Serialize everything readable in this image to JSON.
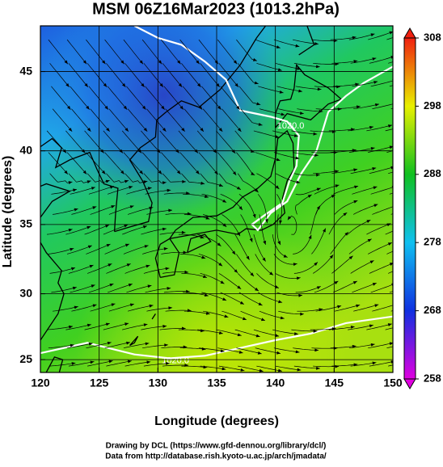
{
  "chart_data": {
    "type": "map",
    "title": "MSM 06Z16Mar2023 (1013.2hPa)",
    "x_label": "Longitude (degrees)",
    "y_label": "Latitude  (degrees)",
    "xlim": [
      120,
      150
    ],
    "ylim": [
      24,
      47.7
    ],
    "projection": "mercator",
    "xticks": [
      120,
      125,
      130,
      135,
      140,
      145,
      150
    ],
    "yticks": [
      25,
      30,
      35,
      40,
      45
    ],
    "grid": true,
    "colorbar": {
      "lim": [
        258,
        308
      ],
      "ticks": [
        258,
        268,
        278,
        288,
        298,
        308
      ],
      "colors": [
        "#e000e0",
        "#1030e0",
        "#10c0f0",
        "#10c020",
        "#e8f000",
        "#f02010"
      ]
    },
    "contour_labels": [
      "1020.0",
      "1020.0"
    ],
    "credits": [
      "Drawing by DCL (https://www.gfd-dennou.org/library/dcl/)",
      "Data from http://database.rish.kyoto-u.ac.jp/arch/jmadata/"
    ]
  }
}
